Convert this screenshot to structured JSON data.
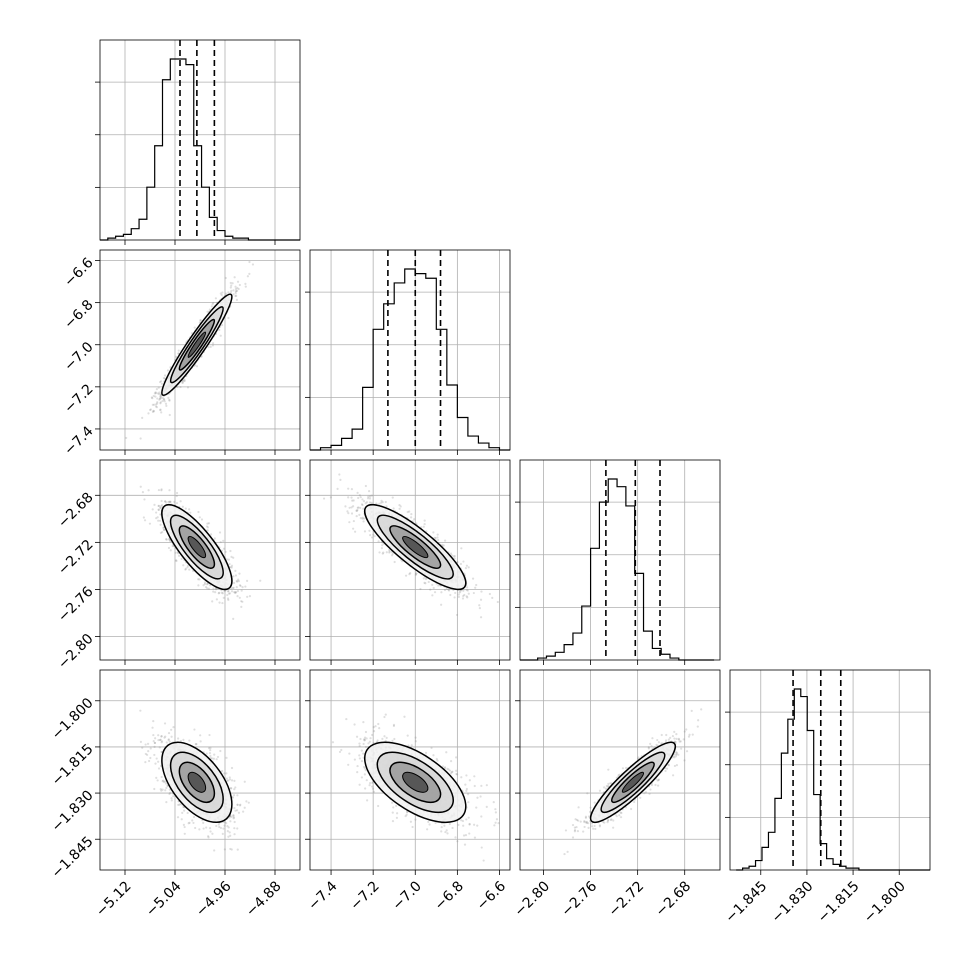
{
  "chart_data": {
    "type": "corner",
    "grid": true,
    "colors": {
      "ink": "#000000",
      "grid": "#b0b0b0",
      "background": "#ffffff"
    },
    "parameters": [
      {
        "range": [
          -5.16,
          -4.84
        ],
        "ticks": [
          -5.12,
          -5.04,
          -4.96,
          -4.88
        ],
        "tick_labels": [
          "−5.12",
          "−5.04",
          "−4.96",
          "−4.88"
        ]
      },
      {
        "range": [
          -7.5,
          -6.55
        ],
        "ticks": [
          -7.4,
          -7.2,
          -7.0,
          -6.8,
          -6.6
        ],
        "tick_labels": [
          "−7.4",
          "−7.2",
          "−7.0",
          "−6.8",
          "−6.6"
        ]
      },
      {
        "range": [
          -2.82,
          -2.65
        ],
        "ticks": [
          -2.8,
          -2.76,
          -2.72,
          -2.68
        ],
        "tick_labels": [
          "−2.80",
          "−2.76",
          "−2.72",
          "−2.68"
        ]
      },
      {
        "range": [
          -1.855,
          -1.79
        ],
        "ticks": [
          -1.845,
          -1.83,
          -1.815,
          -1.8
        ],
        "tick_labels": [
          "−1.845",
          "−1.830",
          "−1.815",
          "−1.800"
        ]
      }
    ],
    "histograms": [
      {
        "param": 0,
        "quantiles": [
          -5.032,
          -5.005,
          -4.977
        ],
        "bins": {
          "start": -5.16,
          "width": 0.0125,
          "counts": [
            0,
            1,
            2,
            3,
            6,
            11,
            28,
            50,
            85,
            96,
            96,
            93,
            50,
            28,
            12,
            5,
            2,
            1,
            1,
            0,
            0,
            0,
            0,
            0,
            0,
            0
          ]
        }
      },
      {
        "param": 1,
        "quantiles": [
          -7.13,
          -7.0,
          -6.88
        ],
        "bins": {
          "start": -7.5,
          "width": 0.05,
          "counts": [
            0,
            1,
            2,
            5,
            9,
            27,
            52,
            63,
            72,
            78,
            76,
            74,
            52,
            28,
            14,
            6,
            3,
            1,
            0,
            0
          ]
        }
      },
      {
        "param": 2,
        "quantiles": [
          -2.747,
          -2.722,
          -2.701
        ],
        "bins": {
          "start": -2.82,
          "width": 0.0075,
          "counts": [
            0,
            0,
            1,
            2,
            4,
            8,
            14,
            28,
            58,
            82,
            94,
            90,
            80,
            45,
            15,
            6,
            3,
            1,
            0,
            0,
            0,
            0
          ]
        }
      },
      {
        "param": 3,
        "quantiles": [
          -1.8345,
          -1.8255,
          -1.819
        ],
        "bins": {
          "start": -1.853,
          "width": 0.0021,
          "counts": [
            0,
            1,
            2,
            5,
            12,
            20,
            38,
            62,
            80,
            96,
            92,
            74,
            40,
            14,
            6,
            3,
            2,
            1,
            1,
            0,
            0,
            0,
            0,
            0,
            0,
            0,
            0,
            0,
            0,
            0,
            0
          ]
        }
      }
    ],
    "scatter_2d": [
      {
        "x": 0,
        "y": 1,
        "mean": [
          -5.005,
          -7.0
        ],
        "sd": [
          0.028,
          0.12
        ],
        "rho": 0.95
      },
      {
        "x": 0,
        "y": 2,
        "mean": [
          -5.005,
          -2.724
        ],
        "sd": [
          0.028,
          0.018
        ],
        "rho": -0.8
      },
      {
        "x": 1,
        "y": 2,
        "mean": [
          -7.0,
          -2.724
        ],
        "sd": [
          0.12,
          0.018
        ],
        "rho": -0.85
      },
      {
        "x": 0,
        "y": 3,
        "mean": [
          -5.005,
          -1.8265
        ],
        "sd": [
          0.028,
          0.0065
        ],
        "rho": -0.55
      },
      {
        "x": 1,
        "y": 3,
        "mean": [
          -7.0,
          -1.8265
        ],
        "sd": [
          0.12,
          0.0065
        ],
        "rho": -0.6
      },
      {
        "x": 2,
        "y": 3,
        "mean": [
          -2.724,
          -1.8265
        ],
        "sd": [
          0.018,
          0.0065
        ],
        "rho": 0.9
      }
    ],
    "contour_levels_sigma": [
      0.5,
      1.0,
      1.5,
      2.0
    ]
  }
}
